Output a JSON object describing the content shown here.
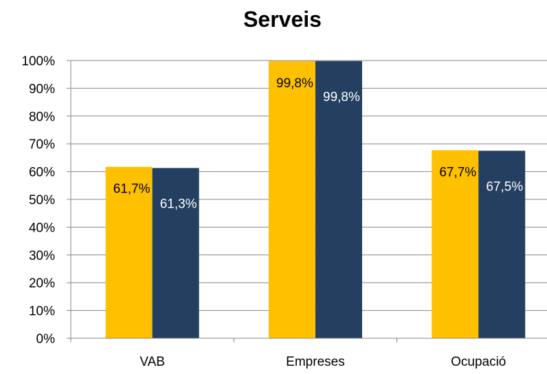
{
  "chart_data": {
    "type": "bar",
    "title": "Serveis",
    "xlabel": "",
    "ylabel": "",
    "categories": [
      "VAB",
      "Empreses",
      "Ocupació"
    ],
    "series": [
      {
        "values": [
          61.7,
          99.8,
          67.7
        ],
        "labels": [
          "61,7%",
          "99,8%",
          "67,7%"
        ],
        "color": "#FFC000"
      },
      {
        "values": [
          61.3,
          99.8,
          67.5
        ],
        "labels": [
          "61,3%",
          "99,8%",
          "67,5%"
        ],
        "color": "#243F60"
      }
    ],
    "ylim": [
      0,
      100
    ],
    "yticks": [
      "0%",
      "10%",
      "20%",
      "30%",
      "40%",
      "50%",
      "60%",
      "70%",
      "80%",
      "90%",
      "100%"
    ],
    "grid": true,
    "legend": "none"
  }
}
